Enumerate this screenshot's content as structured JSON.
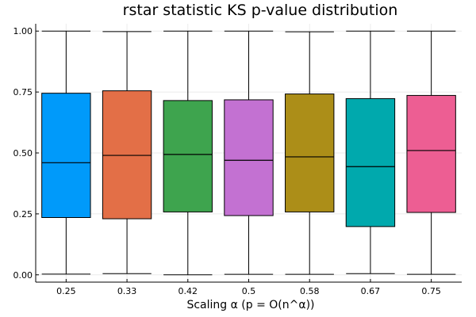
{
  "chart_data": {
    "type": "box",
    "title": "rstar statistic KS p-value distribution",
    "xlabel": "Scaling α (p = O(n^α))",
    "ylabel": "",
    "ylim": [
      -0.03,
      1.03
    ],
    "yticks": [
      0.0,
      0.25,
      0.5,
      0.75,
      1.0
    ],
    "ytick_labels": [
      "0.00",
      "0.25",
      "0.50",
      "0.75",
      "1.00"
    ],
    "grid": true,
    "legend": "none",
    "categories": [
      "0.25",
      "0.33",
      "0.42",
      "0.5",
      "0.58",
      "0.67",
      "0.75"
    ],
    "series": [
      {
        "min": 0.003,
        "q1": 0.235,
        "median": 0.46,
        "q3": 0.745,
        "max": 1.0,
        "color": "#009AFA"
      },
      {
        "min": 0.005,
        "q1": 0.23,
        "median": 0.49,
        "q3": 0.755,
        "max": 0.998,
        "color": "#E36F47"
      },
      {
        "min": 0.0,
        "q1": 0.258,
        "median": 0.494,
        "q3": 0.715,
        "max": 1.0,
        "color": "#3EA44E"
      },
      {
        "min": 0.002,
        "q1": 0.243,
        "median": 0.47,
        "q3": 0.718,
        "max": 1.0,
        "color": "#C371D2"
      },
      {
        "min": 0.002,
        "q1": 0.258,
        "median": 0.484,
        "q3": 0.742,
        "max": 0.997,
        "color": "#AC8E18"
      },
      {
        "min": 0.005,
        "q1": 0.198,
        "median": 0.444,
        "q3": 0.723,
        "max": 1.0,
        "color": "#00A9AD"
      },
      {
        "min": 0.002,
        "q1": 0.256,
        "median": 0.51,
        "q3": 0.736,
        "max": 1.0,
        "color": "#ED5E93"
      }
    ]
  }
}
